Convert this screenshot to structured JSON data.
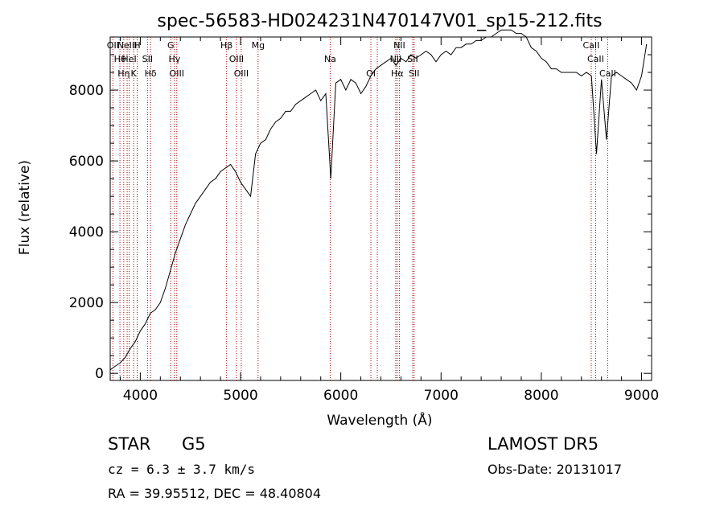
{
  "chart_data": {
    "type": "line",
    "title": "spec-56583-HD024231N470147V01_sp15-212.fits",
    "xlabel": "Wavelength (Å)",
    "ylabel": "Flux (relative)",
    "xlim": [
      3700,
      9100
    ],
    "ylim": [
      -200,
      9500
    ],
    "x_ticks": [
      4000,
      5000,
      6000,
      7000,
      8000,
      9000
    ],
    "y_ticks": [
      0,
      2000,
      4000,
      6000,
      8000
    ],
    "grid": false,
    "line_color": "#000000",
    "marker_color": "#aa0000",
    "series": [
      {
        "x": [
          3700,
          3750,
          3800,
          3850,
          3900,
          3950,
          4000,
          4050,
          4100,
          4150,
          4200,
          4250,
          4300,
          4350,
          4400,
          4450,
          4500,
          4550,
          4600,
          4650,
          4700,
          4750,
          4800,
          4850,
          4900,
          4950,
          5000,
          5050,
          5100,
          5150,
          5200,
          5250,
          5300,
          5350,
          5400,
          5450,
          5500,
          5550,
          5600,
          5650,
          5700,
          5750,
          5800,
          5850,
          5900,
          5950,
          6000,
          6050,
          6100,
          6150,
          6200,
          6250,
          6300,
          6350,
          6400,
          6450,
          6500,
          6550,
          6600,
          6650,
          6700,
          6750,
          6800,
          6850,
          6900,
          6950,
          7000,
          7050,
          7100,
          7150,
          7200,
          7250,
          7300,
          7350,
          7400,
          7450,
          7500,
          7550,
          7600,
          7650,
          7700,
          7750,
          7800,
          7850,
          7900,
          7950,
          8000,
          8050,
          8100,
          8150,
          8200,
          8250,
          8300,
          8350,
          8400,
          8450,
          8500,
          8550,
          8600,
          8650,
          8700,
          8750,
          8800,
          8850,
          8900,
          8950,
          9000,
          9050
        ],
        "y": [
          100,
          200,
          300,
          450,
          700,
          900,
          1200,
          1400,
          1700,
          1800,
          2000,
          2400,
          2900,
          3400,
          3800,
          4200,
          4500,
          4800,
          5000,
          5200,
          5400,
          5500,
          5700,
          5800,
          5900,
          5700,
          5400,
          5200,
          5000,
          6200,
          6500,
          6600,
          6900,
          7100,
          7200,
          7400,
          7400,
          7600,
          7700,
          7800,
          7900,
          8000,
          7700,
          7900,
          5500,
          8200,
          8300,
          8000,
          8300,
          8200,
          7900,
          8100,
          8400,
          8600,
          8700,
          8800,
          8900,
          8700,
          8900,
          8800,
          9000,
          8900,
          9000,
          9100,
          9000,
          8800,
          9000,
          9100,
          9000,
          9200,
          9200,
          9300,
          9300,
          9400,
          9400,
          9500,
          9500,
          9600,
          9700,
          9700,
          9700,
          9600,
          9600,
          9500,
          9200,
          9100,
          8900,
          8800,
          8600,
          8600,
          8500,
          8500,
          8500,
          8500,
          8400,
          8500,
          8400,
          6200,
          8300,
          6600,
          8400,
          8500,
          8400,
          8300,
          8200,
          8000,
          8400,
          9300
        ]
      }
    ],
    "line_markers": [
      {
        "x": 3727,
        "label": "OII"
      },
      {
        "x": 3797,
        "label": "Hθ"
      },
      {
        "x": 3835,
        "label": "Hη"
      },
      {
        "x": 3869,
        "label": "NeIII"
      },
      {
        "x": 3889,
        "label": "HeI"
      },
      {
        "x": 3934,
        "label": "K"
      },
      {
        "x": 3969,
        "label": "H"
      },
      {
        "x": 4072,
        "label": "SII"
      },
      {
        "x": 4102,
        "label": "Hδ"
      },
      {
        "x": 4304,
        "label": "G"
      },
      {
        "x": 4341,
        "label": "Hγ"
      },
      {
        "x": 4364,
        "label": "OIII"
      },
      {
        "x": 4861,
        "label": "Hβ"
      },
      {
        "x": 4959,
        "label": "OIII"
      },
      {
        "x": 5007,
        "label": "OIII"
      },
      {
        "x": 5175,
        "label": "Mg"
      },
      {
        "x": 5894,
        "label": "Na"
      },
      {
        "x": 6300,
        "label": "OI"
      },
      {
        "x": 6364,
        "label": ""
      },
      {
        "x": 6548,
        "label": "NII"
      },
      {
        "x": 6563,
        "label": "Hα"
      },
      {
        "x": 6584,
        "label": "NII"
      },
      {
        "x": 6717,
        "label": "SII"
      },
      {
        "x": 6731,
        "label": "SII"
      },
      {
        "x": 8498,
        "label": "CaII"
      },
      {
        "x": 8542,
        "label": "CaII"
      },
      {
        "x": 8662,
        "label": "CaII"
      }
    ]
  },
  "info": {
    "object_type": "STAR",
    "subclass": "G5",
    "survey": "LAMOST  DR5",
    "cz": "cz = 6.3 ± 3.7 km/s",
    "obs_date": "Obs-Date: 20131017",
    "coords": "RA =  39.95512, DEC =  48.40804"
  }
}
